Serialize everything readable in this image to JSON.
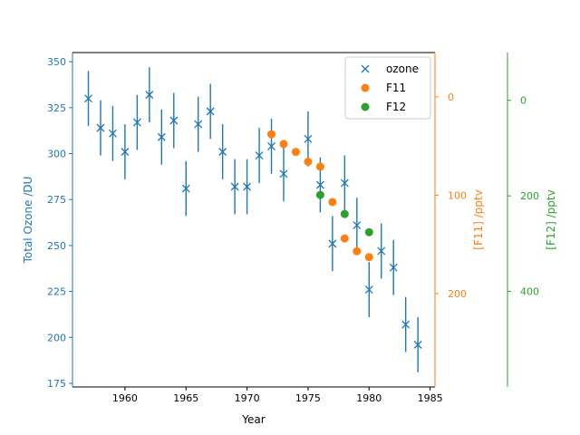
{
  "chart_data": {
    "type": "scatter",
    "x_axis": {
      "label": "Year",
      "lim": [
        1955.7,
        1985.4
      ],
      "ticks": [
        1960,
        1965,
        1970,
        1975,
        1980,
        1985
      ],
      "color": "#000000"
    },
    "axes": {
      "ozone": {
        "label": "Total Ozone /DU",
        "lim": [
          173,
          355
        ],
        "inverted": false,
        "ticks": [
          175,
          200,
          225,
          250,
          275,
          300,
          325,
          350
        ],
        "color": "#1f77b4",
        "side": "left"
      },
      "f11": {
        "label": "[F11] /pptv",
        "lim": [
          -45,
          295
        ],
        "inverted": true,
        "ticks": [
          0,
          100,
          200
        ],
        "color": "#ff7f0e",
        "side": "right"
      },
      "f12": {
        "label": "[F12] /pptv",
        "lim": [
          -100,
          600
        ],
        "inverted": true,
        "ticks": [
          0,
          200,
          400
        ],
        "color": "#2ca02c",
        "side": "right-outer"
      }
    },
    "series": [
      {
        "name": "ozone",
        "axis": "ozone",
        "marker": "x",
        "color": "#1f77b4",
        "errorbars": true,
        "points": [
          {
            "x": 1957,
            "y": 330,
            "err": 15
          },
          {
            "x": 1958,
            "y": 314,
            "err": 15
          },
          {
            "x": 1959,
            "y": 311,
            "err": 15
          },
          {
            "x": 1960,
            "y": 301,
            "err": 15
          },
          {
            "x": 1961,
            "y": 317,
            "err": 15
          },
          {
            "x": 1962,
            "y": 332,
            "err": 15
          },
          {
            "x": 1963,
            "y": 309,
            "err": 15
          },
          {
            "x": 1964,
            "y": 318,
            "err": 15
          },
          {
            "x": 1965,
            "y": 281,
            "err": 15
          },
          {
            "x": 1966,
            "y": 316,
            "err": 15
          },
          {
            "x": 1967,
            "y": 323,
            "err": 15
          },
          {
            "x": 1968,
            "y": 301,
            "err": 15
          },
          {
            "x": 1969,
            "y": 282,
            "err": 15
          },
          {
            "x": 1970,
            "y": 282,
            "err": 15
          },
          {
            "x": 1971,
            "y": 299,
            "err": 15
          },
          {
            "x": 1972,
            "y": 304,
            "err": 15
          },
          {
            "x": 1973,
            "y": 289,
            "err": 15
          },
          {
            "x": 1975,
            "y": 308,
            "err": 15
          },
          {
            "x": 1976,
            "y": 283,
            "err": 15
          },
          {
            "x": 1977,
            "y": 251,
            "err": 15
          },
          {
            "x": 1978,
            "y": 284,
            "err": 15
          },
          {
            "x": 1979,
            "y": 261,
            "err": 15
          },
          {
            "x": 1980,
            "y": 226,
            "err": 15
          },
          {
            "x": 1981,
            "y": 247,
            "err": 15
          },
          {
            "x": 1982,
            "y": 238,
            "err": 15
          },
          {
            "x": 1983,
            "y": 207,
            "err": 15
          },
          {
            "x": 1984,
            "y": 196,
            "err": 15
          }
        ]
      },
      {
        "name": "F11",
        "axis": "f11",
        "marker": "o",
        "color": "#ff7f0e",
        "points": [
          {
            "x": 1972,
            "y": 38
          },
          {
            "x": 1973,
            "y": 48
          },
          {
            "x": 1974,
            "y": 56
          },
          {
            "x": 1975,
            "y": 66
          },
          {
            "x": 1976,
            "y": 71
          },
          {
            "x": 1977,
            "y": 107
          },
          {
            "x": 1978,
            "y": 144
          },
          {
            "x": 1979,
            "y": 157
          },
          {
            "x": 1980,
            "y": 163
          }
        ]
      },
      {
        "name": "F12",
        "axis": "f12",
        "marker": "o",
        "color": "#2ca02c",
        "points": [
          {
            "x": 1976,
            "y": 198
          },
          {
            "x": 1978,
            "y": 238
          },
          {
            "x": 1980,
            "y": 276
          }
        ]
      }
    ],
    "legend": {
      "placement": "top-right",
      "entries": [
        "ozone",
        "F11",
        "F12"
      ]
    }
  }
}
